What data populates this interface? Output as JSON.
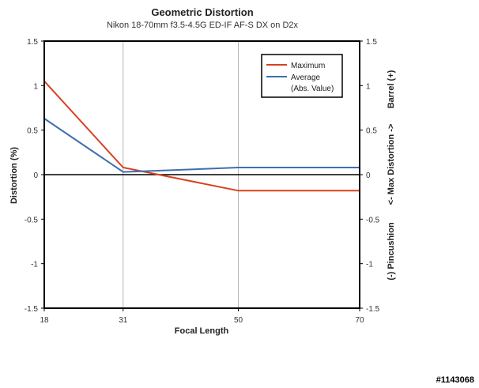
{
  "chart_data": {
    "type": "line",
    "title": "Geometric Distortion",
    "subtitle": "Nikon 18-70mm f3.5-4.5G ED-IF AF-S DX on D2x",
    "xlabel": "Focal Length",
    "ylabel": "Distortion (%)",
    "ylabel_right": {
      "top": "Barrel (+)",
      "middle": "<- Max Distortion ->",
      "bottom": "(-) Pincushion"
    },
    "x_ticks": [
      18,
      31,
      50,
      70
    ],
    "y_ticks": [
      -1.5,
      -1,
      -0.5,
      0,
      0.5,
      1,
      1.5
    ],
    "y_tick_labels": [
      "-1.5",
      "-1",
      "-0.5",
      "0",
      "0.5",
      "1",
      "1.5"
    ],
    "xlim": [
      18,
      70
    ],
    "ylim": [
      -1.5,
      1.5
    ],
    "grid": "vertical",
    "legend_position": "top-right",
    "series": [
      {
        "name": "Maximum",
        "color": "#d9401f",
        "points": [
          [
            18,
            1.05
          ],
          [
            31,
            0.08
          ],
          [
            50,
            -0.18
          ],
          [
            70,
            -0.18
          ]
        ]
      },
      {
        "name": "Average",
        "name_line2": "(Abs. Value)",
        "color": "#3e6fae",
        "points": [
          [
            18,
            0.63
          ],
          [
            31,
            0.03
          ],
          [
            35,
            0.04
          ],
          [
            50,
            0.08
          ],
          [
            70,
            0.08
          ]
        ]
      }
    ]
  },
  "watermark": "#1143068"
}
